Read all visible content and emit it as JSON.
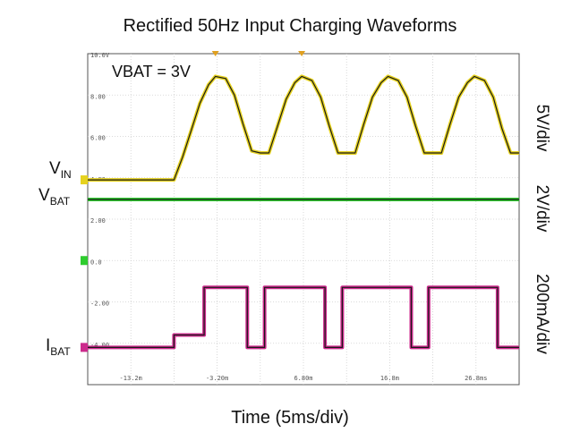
{
  "chart_data": {
    "type": "line",
    "title": "Rectified 50Hz Input Charging Waveforms",
    "xlabel": "Time (5ms/div)",
    "annotation": "VBAT = 3V",
    "x_tick_labels": [
      "-13.2m",
      "-3.20m",
      "6.80m",
      "16.8m",
      "26.8ms"
    ],
    "y_tick_labels": [
      "10.0V",
      "8.00",
      "6.00",
      "4.00",
      "2.00",
      "0.0",
      "-2.00",
      "-4.00"
    ],
    "series": [
      {
        "name": "VIN",
        "sub": "IN",
        "color": "#e6d21e",
        "scale": "5V/div",
        "points": [
          [
            -18,
            3.9
          ],
          [
            -8,
            3.9
          ],
          [
            -7,
            5.0
          ],
          [
            -6,
            6.3
          ],
          [
            -5,
            7.6
          ],
          [
            -4,
            8.5
          ],
          [
            -3.2,
            8.9
          ],
          [
            -2,
            8.8
          ],
          [
            -1,
            8.0
          ],
          [
            0,
            6.6
          ],
          [
            1,
            5.3
          ],
          [
            2,
            5.2
          ],
          [
            3,
            5.2
          ],
          [
            4,
            6.5
          ],
          [
            5,
            7.8
          ],
          [
            6,
            8.6
          ],
          [
            6.8,
            8.9
          ],
          [
            8,
            8.7
          ],
          [
            9,
            7.9
          ],
          [
            10,
            6.5
          ],
          [
            11,
            5.2
          ],
          [
            13,
            5.2
          ],
          [
            14,
            6.6
          ],
          [
            15,
            7.9
          ],
          [
            16,
            8.6
          ],
          [
            16.8,
            8.9
          ],
          [
            18,
            8.7
          ],
          [
            19,
            7.9
          ],
          [
            20,
            6.5
          ],
          [
            21,
            5.2
          ],
          [
            23,
            5.2
          ],
          [
            24,
            6.6
          ],
          [
            25,
            7.9
          ],
          [
            26,
            8.6
          ],
          [
            26.8,
            8.9
          ],
          [
            28,
            8.7
          ],
          [
            29,
            7.9
          ],
          [
            30,
            6.4
          ],
          [
            31,
            5.2
          ],
          [
            32,
            5.2
          ]
        ]
      },
      {
        "name": "VBAT",
        "sub": "BAT",
        "color": "#2ecc2e",
        "scale": "2V/div",
        "points": [
          [
            -18,
            2.95
          ],
          [
            32,
            2.95
          ]
        ]
      },
      {
        "name": "IBAT",
        "sub": "BAT",
        "color": "#cc2a8c",
        "scale": "200mA/div",
        "points": [
          [
            -18,
            -4.2
          ],
          [
            -8,
            -4.2
          ],
          [
            -8,
            -3.6
          ],
          [
            -4.5,
            -3.6
          ],
          [
            -4.5,
            -1.3
          ],
          [
            0.5,
            -1.3
          ],
          [
            0.5,
            -4.2
          ],
          [
            2.5,
            -4.2
          ],
          [
            2.5,
            -1.3
          ],
          [
            9.5,
            -1.3
          ],
          [
            9.5,
            -4.2
          ],
          [
            11.5,
            -4.2
          ],
          [
            11.5,
            -1.3
          ],
          [
            19.5,
            -1.3
          ],
          [
            19.5,
            -4.2
          ],
          [
            21.5,
            -4.2
          ],
          [
            21.5,
            -1.3
          ],
          [
            29.5,
            -1.3
          ],
          [
            29.5,
            -4.2
          ],
          [
            32,
            -4.2
          ]
        ]
      }
    ],
    "xlim": [
      -18,
      32
    ],
    "ylim": [
      -6,
      10
    ],
    "grid": true
  }
}
